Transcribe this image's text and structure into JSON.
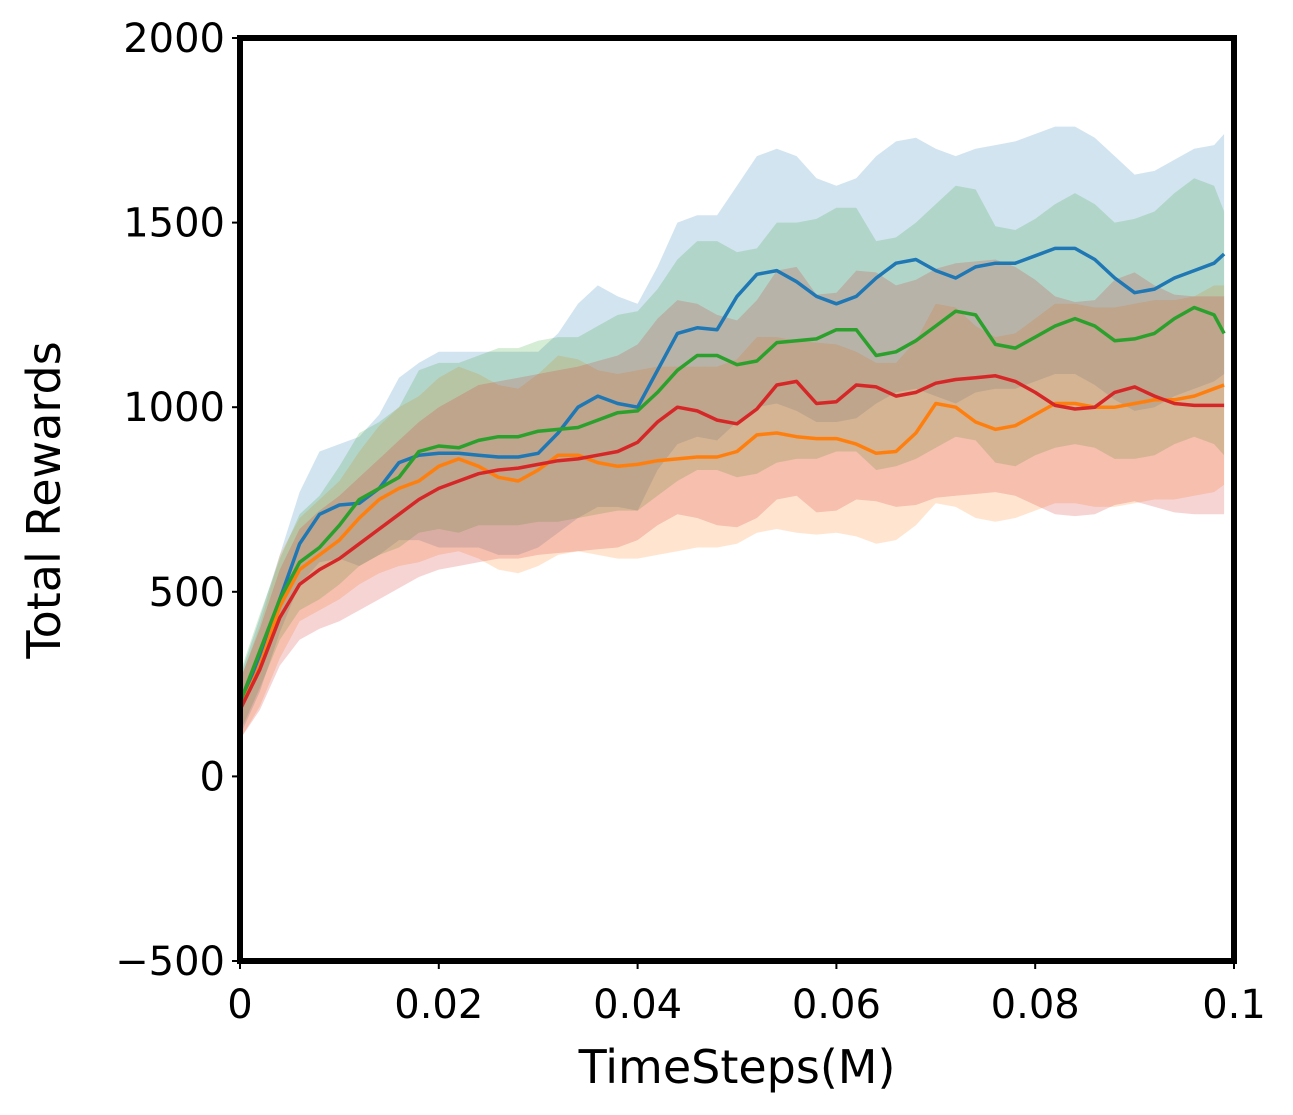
{
  "chart_data": {
    "type": "line",
    "title": "",
    "xlabel": "TimeSteps(M)",
    "ylabel": "Total Rewards",
    "xlim": [
      0,
      0.1
    ],
    "ylim": [
      -500,
      2000
    ],
    "xticks": [
      0,
      0.02,
      0.04,
      0.06,
      0.08,
      0.1
    ],
    "xtick_labels": [
      "0",
      "0.02",
      "0.04",
      "0.06",
      "0.08",
      "0.1"
    ],
    "yticks": [
      -500,
      0,
      500,
      1000,
      1500,
      2000
    ],
    "ytick_labels": [
      "−500",
      "0",
      "500",
      "1000",
      "1500",
      "2000"
    ],
    "grid": false,
    "legend": "none",
    "x": [
      0,
      0.002,
      0.004,
      0.006,
      0.008,
      0.01,
      0.012,
      0.014,
      0.016,
      0.018,
      0.02,
      0.022,
      0.024,
      0.026,
      0.028,
      0.03,
      0.032,
      0.034,
      0.036,
      0.038,
      0.04,
      0.042,
      0.044,
      0.046,
      0.048,
      0.05,
      0.052,
      0.054,
      0.056,
      0.058,
      0.06,
      0.062,
      0.064,
      0.066,
      0.068,
      0.07,
      0.072,
      0.074,
      0.076,
      0.078,
      0.08,
      0.082,
      0.084,
      0.086,
      0.088,
      0.09,
      0.092,
      0.094,
      0.096,
      0.098,
      0.099
    ],
    "series": [
      {
        "color": "#1f77b4",
        "values": [
          190,
          330,
          480,
          630,
          710,
          735,
          740,
          780,
          850,
          870,
          875,
          875,
          870,
          865,
          865,
          875,
          930,
          1000,
          1030,
          1010,
          1000,
          1100,
          1200,
          1215,
          1210,
          1300,
          1360,
          1370,
          1340,
          1300,
          1280,
          1300,
          1350,
          1390,
          1400,
          1370,
          1350,
          1380,
          1390,
          1390,
          1410,
          1430,
          1430,
          1400,
          1350,
          1310,
          1320,
          1350,
          1370,
          1390,
          1415
        ],
        "lower": [
          110,
          230,
          390,
          520,
          580,
          590,
          570,
          600,
          640,
          640,
          620,
          620,
          620,
          600,
          600,
          620,
          660,
          700,
          730,
          730,
          720,
          830,
          900,
          920,
          910,
          960,
          1000,
          1010,
          990,
          960,
          960,
          970,
          1010,
          1040,
          1050,
          1030,
          1010,
          1040,
          1050,
          1050,
          1070,
          1090,
          1090,
          1060,
          1020,
          990,
          1000,
          1030,
          1050,
          1070,
          1090
        ],
        "upper": [
          270,
          430,
          600,
          770,
          880,
          900,
          920,
          980,
          1080,
          1120,
          1150,
          1150,
          1150,
          1150,
          1150,
          1150,
          1200,
          1280,
          1330,
          1300,
          1280,
          1380,
          1500,
          1520,
          1520,
          1600,
          1680,
          1700,
          1680,
          1620,
          1600,
          1620,
          1680,
          1720,
          1730,
          1700,
          1680,
          1700,
          1710,
          1720,
          1740,
          1760,
          1760,
          1730,
          1680,
          1630,
          1640,
          1670,
          1700,
          1710,
          1740
        ]
      },
      {
        "color": "#ff7f0e",
        "values": [
          180,
          300,
          460,
          560,
          600,
          640,
          700,
          750,
          780,
          800,
          840,
          860,
          840,
          810,
          800,
          830,
          870,
          870,
          850,
          840,
          845,
          855,
          860,
          865,
          865,
          880,
          925,
          930,
          920,
          915,
          915,
          900,
          875,
          880,
          930,
          1010,
          1000,
          960,
          940,
          950,
          980,
          1010,
          1010,
          1000,
          1000,
          1010,
          1020,
          1020,
          1030,
          1050,
          1060
        ],
        "lower": [
          100,
          190,
          320,
          420,
          450,
          480,
          520,
          550,
          570,
          580,
          600,
          610,
          590,
          560,
          550,
          570,
          600,
          610,
          600,
          590,
          590,
          600,
          610,
          620,
          620,
          630,
          660,
          670,
          660,
          655,
          660,
          650,
          630,
          640,
          680,
          740,
          730,
          700,
          690,
          700,
          720,
          740,
          740,
          730,
          730,
          740,
          750,
          750,
          760,
          770,
          790
        ],
        "upper": [
          260,
          410,
          600,
          700,
          750,
          800,
          880,
          950,
          1000,
          1030,
          1080,
          1110,
          1090,
          1060,
          1050,
          1090,
          1140,
          1130,
          1100,
          1090,
          1100,
          1110,
          1110,
          1110,
          1110,
          1130,
          1190,
          1190,
          1180,
          1175,
          1170,
          1150,
          1120,
          1120,
          1180,
          1280,
          1270,
          1220,
          1190,
          1200,
          1240,
          1280,
          1280,
          1270,
          1270,
          1280,
          1290,
          1290,
          1300,
          1330,
          1330
        ]
      },
      {
        "color": "#2ca02c",
        "values": [
          200,
          340,
          480,
          580,
          620,
          680,
          750,
          780,
          810,
          880,
          895,
          890,
          910,
          920,
          920,
          935,
          940,
          945,
          965,
          985,
          990,
          1040,
          1100,
          1140,
          1140,
          1115,
          1125,
          1175,
          1180,
          1185,
          1210,
          1210,
          1140,
          1150,
          1180,
          1220,
          1260,
          1250,
          1170,
          1160,
          1190,
          1220,
          1240,
          1220,
          1180,
          1185,
          1200,
          1240,
          1270,
          1250,
          1200
        ],
        "lower": [
          120,
          240,
          370,
          450,
          480,
          520,
          570,
          600,
          620,
          660,
          670,
          660,
          680,
          680,
          680,
          690,
          690,
          700,
          710,
          720,
          720,
          760,
          800,
          830,
          830,
          810,
          820,
          850,
          860,
          860,
          880,
          880,
          830,
          840,
          860,
          890,
          920,
          910,
          850,
          840,
          870,
          890,
          900,
          890,
          860,
          860,
          870,
          900,
          920,
          900,
          870
        ],
        "upper": [
          280,
          440,
          590,
          710,
          760,
          840,
          930,
          960,
          1000,
          1100,
          1120,
          1120,
          1140,
          1160,
          1160,
          1180,
          1190,
          1190,
          1220,
          1250,
          1260,
          1320,
          1400,
          1450,
          1450,
          1420,
          1430,
          1500,
          1500,
          1510,
          1540,
          1540,
          1450,
          1460,
          1500,
          1550,
          1600,
          1590,
          1490,
          1480,
          1510,
          1550,
          1580,
          1550,
          1500,
          1510,
          1530,
          1580,
          1620,
          1600,
          1530
        ]
      },
      {
        "color": "#d62728",
        "values": [
          180,
          290,
          430,
          520,
          560,
          590,
          630,
          670,
          710,
          750,
          780,
          800,
          820,
          830,
          835,
          845,
          855,
          860,
          870,
          880,
          905,
          960,
          1000,
          990,
          965,
          955,
          995,
          1060,
          1070,
          1010,
          1015,
          1060,
          1055,
          1030,
          1040,
          1065,
          1075,
          1080,
          1085,
          1070,
          1040,
          1005,
          995,
          1000,
          1040,
          1055,
          1030,
          1010,
          1005,
          1005,
          1005
        ],
        "lower": [
          100,
          180,
          300,
          370,
          400,
          420,
          450,
          480,
          510,
          540,
          560,
          570,
          580,
          590,
          590,
          600,
          605,
          610,
          615,
          620,
          640,
          680,
          710,
          700,
          680,
          675,
          700,
          750,
          760,
          715,
          720,
          750,
          745,
          730,
          735,
          755,
          760,
          765,
          770,
          760,
          735,
          710,
          705,
          710,
          735,
          745,
          730,
          715,
          710,
          710,
          710
        ],
        "upper": [
          260,
          400,
          560,
          670,
          720,
          760,
          810,
          860,
          910,
          960,
          1000,
          1030,
          1060,
          1070,
          1080,
          1090,
          1100,
          1110,
          1125,
          1140,
          1170,
          1240,
          1290,
          1280,
          1250,
          1235,
          1290,
          1370,
          1380,
          1305,
          1310,
          1370,
          1365,
          1330,
          1345,
          1375,
          1390,
          1395,
          1400,
          1380,
          1345,
          1300,
          1285,
          1290,
          1345,
          1365,
          1330,
          1305,
          1300,
          1300,
          1300
        ]
      }
    ]
  }
}
